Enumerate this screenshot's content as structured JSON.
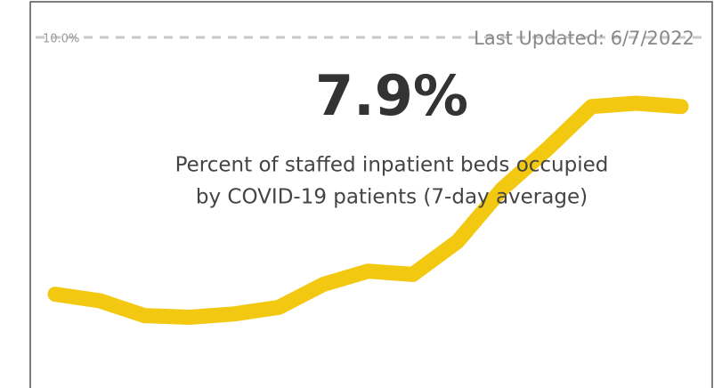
{
  "chart_data": {
    "type": "line",
    "title": "7.9%",
    "subtitle_lines": [
      "Percent of staffed inpatient beds occupied",
      "by COVID-19 patients (7-day average)"
    ],
    "annotation": "Last Updated:  6/7/2022",
    "reference_line": {
      "value": 10,
      "label": "10.0%"
    },
    "categories": [
      null,
      null,
      null,
      null,
      null,
      null,
      null,
      null,
      null,
      null,
      null,
      null,
      null,
      null,
      null
    ],
    "values": [
      2.2,
      2.0,
      1.55,
      1.5,
      1.6,
      1.8,
      2.5,
      2.9,
      2.8,
      3.8,
      5.4,
      6.6,
      7.9,
      8.0,
      7.9
    ],
    "color": "#f2c811",
    "ylim": [
      0,
      10
    ]
  }
}
